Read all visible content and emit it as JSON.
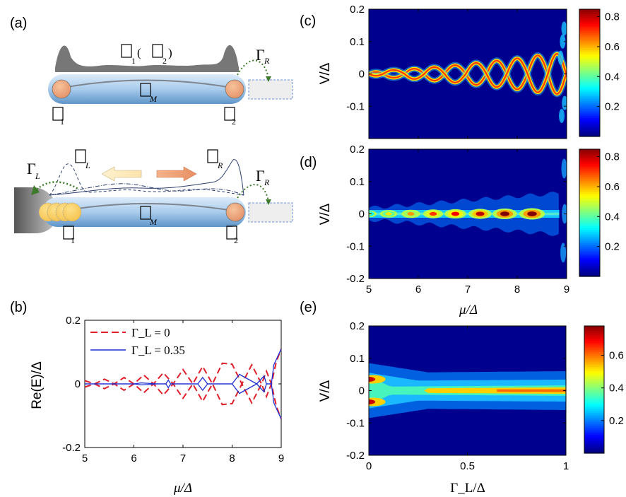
{
  "panel_labels": {
    "a": "(a)",
    "b": "(b)",
    "c": "(c)",
    "d": "(d)",
    "e": "(e)"
  },
  "schematic": {
    "top_labels": [
      "1",
      "(",
      "2",
      ")",
      "M",
      "1",
      "2"
    ],
    "top_gamma_R": "R",
    "bottom_labels": [
      "L",
      "R",
      "M",
      "1",
      "2"
    ],
    "bottom_gamma_L": "L",
    "bottom_gamma_R": "R"
  },
  "colorbar_c": {
    "ticks": [
      "0.8",
      "0.6",
      "0.4",
      "0.2"
    ],
    "tick_values": [
      0.8,
      0.6,
      0.4,
      0.2
    ],
    "max": 0.85
  },
  "colorbar_d": {
    "ticks": [
      "0.8",
      "0.6",
      "0.4",
      "0.2"
    ],
    "tick_values": [
      0.8,
      0.6,
      0.4,
      0.2
    ],
    "max": 0.85
  },
  "colorbar_e": {
    "ticks": [
      "0.6",
      "0.4",
      "0.2"
    ],
    "tick_values": [
      0.6,
      0.4,
      0.2
    ],
    "max": 0.78
  },
  "chart_data": [
    {
      "id": "b",
      "type": "line",
      "xlabel": "μ/Δ",
      "ylabel": "Re(E)/Δ",
      "xlim": [
        5,
        9
      ],
      "ylim": [
        -0.2,
        0.2
      ],
      "xticks": [
        "5",
        "6",
        "7",
        "8",
        "9"
      ],
      "yticks": [
        "0.2",
        "0",
        "-0.2"
      ],
      "legend_position": "top-left",
      "series": [
        {
          "name": "Γ_L = 0",
          "style": "dashed",
          "color": "#e0202a",
          "x": [
            5.0,
            5.2,
            5.4,
            5.6,
            5.8,
            6.0,
            6.2,
            6.4,
            6.6,
            6.8,
            7.0,
            7.2,
            7.4,
            7.6,
            7.8,
            8.0,
            8.2,
            8.4,
            8.6,
            8.7,
            8.8,
            8.9,
            9.0
          ],
          "y": [
            0.01,
            0.0,
            0.015,
            0.0,
            0.02,
            0.0,
            0.028,
            0.0,
            0.035,
            0.0,
            0.045,
            0.0,
            0.055,
            0.0,
            0.065,
            0.062,
            0.0,
            0.06,
            0.0,
            0.04,
            0.0,
            0.07,
            0.11
          ]
        },
        {
          "name": "Γ_L = 0.35",
          "style": "solid",
          "color": "#1f2fd1",
          "x": [
            5.0,
            6.0,
            6.15,
            6.5,
            6.65,
            6.7,
            6.75,
            6.9,
            7.3,
            7.4,
            7.5,
            7.7,
            8.0,
            8.15,
            8.5,
            8.65,
            8.7,
            8.8,
            8.85,
            9.0
          ],
          "y": [
            0.0,
            0.0,
            0.003,
            0.0,
            0.0,
            0.012,
            0.0,
            0.0,
            0.0,
            0.02,
            0.0,
            0.0,
            0.0,
            0.03,
            0.0,
            0.025,
            0.0,
            0.0,
            0.06,
            0.11
          ]
        }
      ]
    },
    {
      "id": "c",
      "type": "heatmap",
      "xlim": [
        5,
        9
      ],
      "ylim": [
        -0.2,
        0.2
      ],
      "ylabel": "V/Δ",
      "yticks": [
        "0.2",
        "0.1",
        "0",
        "-0.1"
      ],
      "colorbar_range": [
        0,
        0.85
      ],
      "oscillation_nodes_mu": [
        5.0,
        5.29,
        5.72,
        6.12,
        6.53,
        6.96,
        7.38,
        7.79,
        8.21,
        8.62,
        8.99
      ],
      "oscillation_amplitude": [
        0.006,
        0.012,
        0.016,
        0.021,
        0.027,
        0.034,
        0.041,
        0.048,
        0.057,
        0.062
      ]
    },
    {
      "id": "d",
      "type": "heatmap",
      "xlim": [
        5,
        9
      ],
      "ylim": [
        -0.2,
        0.2
      ],
      "xlabel": "μ/Δ",
      "ylabel": "V/Δ",
      "xticks": [
        "5",
        "6",
        "7",
        "8",
        "9"
      ],
      "yticks": [
        "0.2",
        "0.1",
        "0",
        "-0.1",
        "-0.2"
      ],
      "colorbar_range": [
        0,
        0.85
      ],
      "peaks_mu": [
        5.0,
        5.4,
        5.85,
        6.3,
        6.75,
        7.25,
        7.75,
        8.3
      ],
      "peaks_value": [
        0.45,
        0.55,
        0.62,
        0.7,
        0.75,
        0.8,
        0.85,
        0.85
      ]
    },
    {
      "id": "e",
      "type": "heatmap",
      "xlim": [
        0,
        1
      ],
      "ylim": [
        -0.2,
        0.2
      ],
      "xlabel": "Γ_L/Δ",
      "ylabel": "V/Δ",
      "xticks": [
        "0",
        "0.5",
        "1"
      ],
      "yticks": [
        "0.2",
        "0.1",
        "0",
        "-0.1",
        "-0.2"
      ],
      "colorbar_range": [
        0,
        0.78
      ]
    }
  ]
}
